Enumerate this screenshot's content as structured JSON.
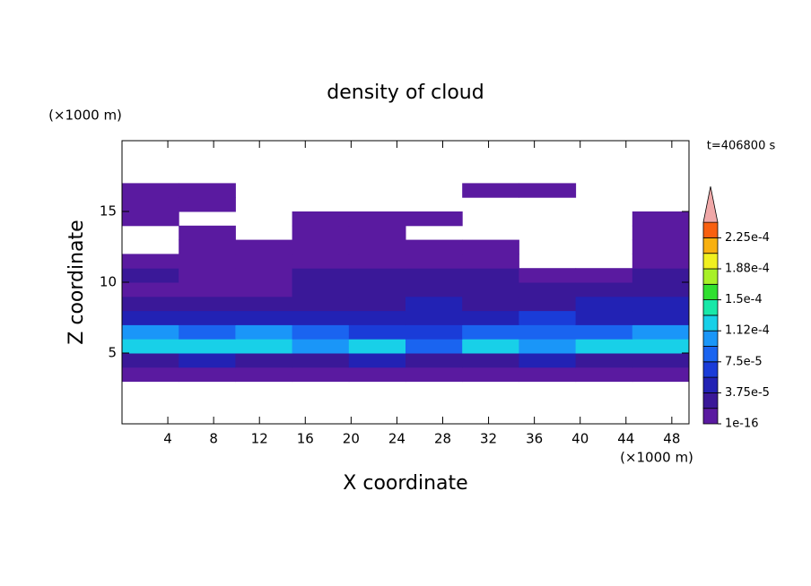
{
  "chart_data": {
    "type": "contour",
    "title": "density of cloud",
    "xlabel": "X coordinate",
    "ylabel": "Z coordinate",
    "xunit": "(×1000 m)",
    "yunit": "(×1000 m)",
    "time_label": "t=406800 s",
    "xlim": [
      0,
      49.5
    ],
    "ylim": [
      0,
      20
    ],
    "xticks": [
      4,
      8,
      12,
      16,
      20,
      24,
      28,
      32,
      36,
      40,
      44,
      48
    ],
    "yticks": [
      5,
      10,
      15
    ],
    "x_edges": [
      0,
      4.95,
      9.9,
      14.85,
      19.8,
      24.75,
      29.7,
      34.65,
      39.6,
      44.55,
      49.5
    ],
    "z_edges": [
      0,
      1,
      2,
      3,
      4,
      5,
      6,
      7,
      8,
      9,
      10,
      11,
      12,
      13,
      14,
      15,
      16,
      17,
      18,
      19,
      20
    ],
    "values": [
      [
        null,
        null,
        null,
        null,
        null,
        null,
        null,
        null,
        null,
        null
      ],
      [
        null,
        null,
        null,
        null,
        null,
        null,
        null,
        null,
        null,
        null
      ],
      [
        null,
        null,
        null,
        null,
        null,
        null,
        null,
        null,
        null,
        null
      ],
      [
        1e-05,
        1e-05,
        1e-05,
        1e-05,
        1e-05,
        1e-05,
        1e-05,
        1e-05,
        1e-05,
        1e-05
      ],
      [
        3e-05,
        4e-05,
        3e-05,
        3e-05,
        4e-05,
        3e-05,
        3e-05,
        4e-05,
        3e-05,
        3e-05
      ],
      [
        0.00013,
        0.00012,
        0.00013,
        0.0001,
        0.00013,
        8e-05,
        0.00012,
        0.00011,
        0.00012,
        0.00013
      ],
      [
        0.0001,
        9e-05,
        0.0001,
        8e-05,
        7e-05,
        6e-05,
        9e-05,
        8e-05,
        9e-05,
        0.0001
      ],
      [
        5e-05,
        4e-05,
        4e-05,
        5e-05,
        4e-05,
        5e-05,
        5e-05,
        6e-05,
        5e-05,
        5e-05
      ],
      [
        2.5e-05,
        2e-05,
        2.5e-05,
        3e-05,
        3e-05,
        4e-05,
        3e-05,
        3e-05,
        4e-05,
        4e-05
      ],
      [
        1e-05,
        1e-05,
        1.5e-05,
        2e-05,
        2e-05,
        3e-05,
        3e-05,
        2e-05,
        2e-05,
        3e-05
      ],
      [
        2e-05,
        1e-05,
        1e-05,
        2e-05,
        2e-05,
        2e-05,
        2e-05,
        1e-05,
        1e-05,
        2e-05
      ],
      [
        1e-05,
        1e-05,
        1e-05,
        1e-05,
        1e-05,
        1e-05,
        1e-05,
        null,
        null,
        1e-05
      ],
      [
        null,
        1e-05,
        1e-05,
        1e-05,
        1e-05,
        1e-05,
        1e-05,
        null,
        null,
        1e-05
      ],
      [
        null,
        1e-05,
        null,
        1e-05,
        1e-05,
        null,
        null,
        null,
        null,
        1e-05
      ],
      [
        1e-05,
        null,
        null,
        1e-05,
        1e-05,
        1e-05,
        null,
        null,
        null,
        1e-05
      ],
      [
        1e-05,
        1e-05,
        null,
        null,
        null,
        null,
        null,
        null,
        null,
        null
      ],
      [
        1e-05,
        1e-05,
        null,
        null,
        null,
        null,
        1e-05,
        1e-05,
        null,
        null
      ],
      [
        null,
        null,
        null,
        null,
        null,
        null,
        null,
        null,
        null,
        null
      ],
      [
        null,
        null,
        null,
        null,
        null,
        null,
        null,
        null,
        null,
        null
      ],
      [
        null,
        null,
        null,
        null,
        null,
        null,
        null,
        null,
        null,
        null
      ]
    ],
    "levels": [
      1e-16,
      1.875e-05,
      3.75e-05,
      5.625e-05,
      7.5e-05,
      9.375e-05,
      0.0001125,
      0.00013125,
      0.00015,
      0.00016875,
      0.0001875,
      0.00020625,
      0.000225,
      0.00024375
    ],
    "colors": [
      "#5a1aa0",
      "#3a1898",
      "#2222b4",
      "#1a3cd8",
      "#1a64f0",
      "#1a96f8",
      "#18d0e8",
      "#18e8a8",
      "#30e030",
      "#a8f028",
      "#f0f020",
      "#f8b010",
      "#f86010"
    ],
    "over_color": "#f0a8a8",
    "colorbar_ticks": [
      {
        "value": 1e-16,
        "label": "1e-16"
      },
      {
        "value": 3.75e-05,
        "label": "3.75e-5"
      },
      {
        "value": 7.5e-05,
        "label": "7.5e-5"
      },
      {
        "value": 0.0001125,
        "label": "1.12e-4"
      },
      {
        "value": 0.00015,
        "label": "1.5e-4"
      },
      {
        "value": 0.0001875,
        "label": "1.88e-4"
      },
      {
        "value": 0.000225,
        "label": "2.25e-4"
      }
    ]
  }
}
